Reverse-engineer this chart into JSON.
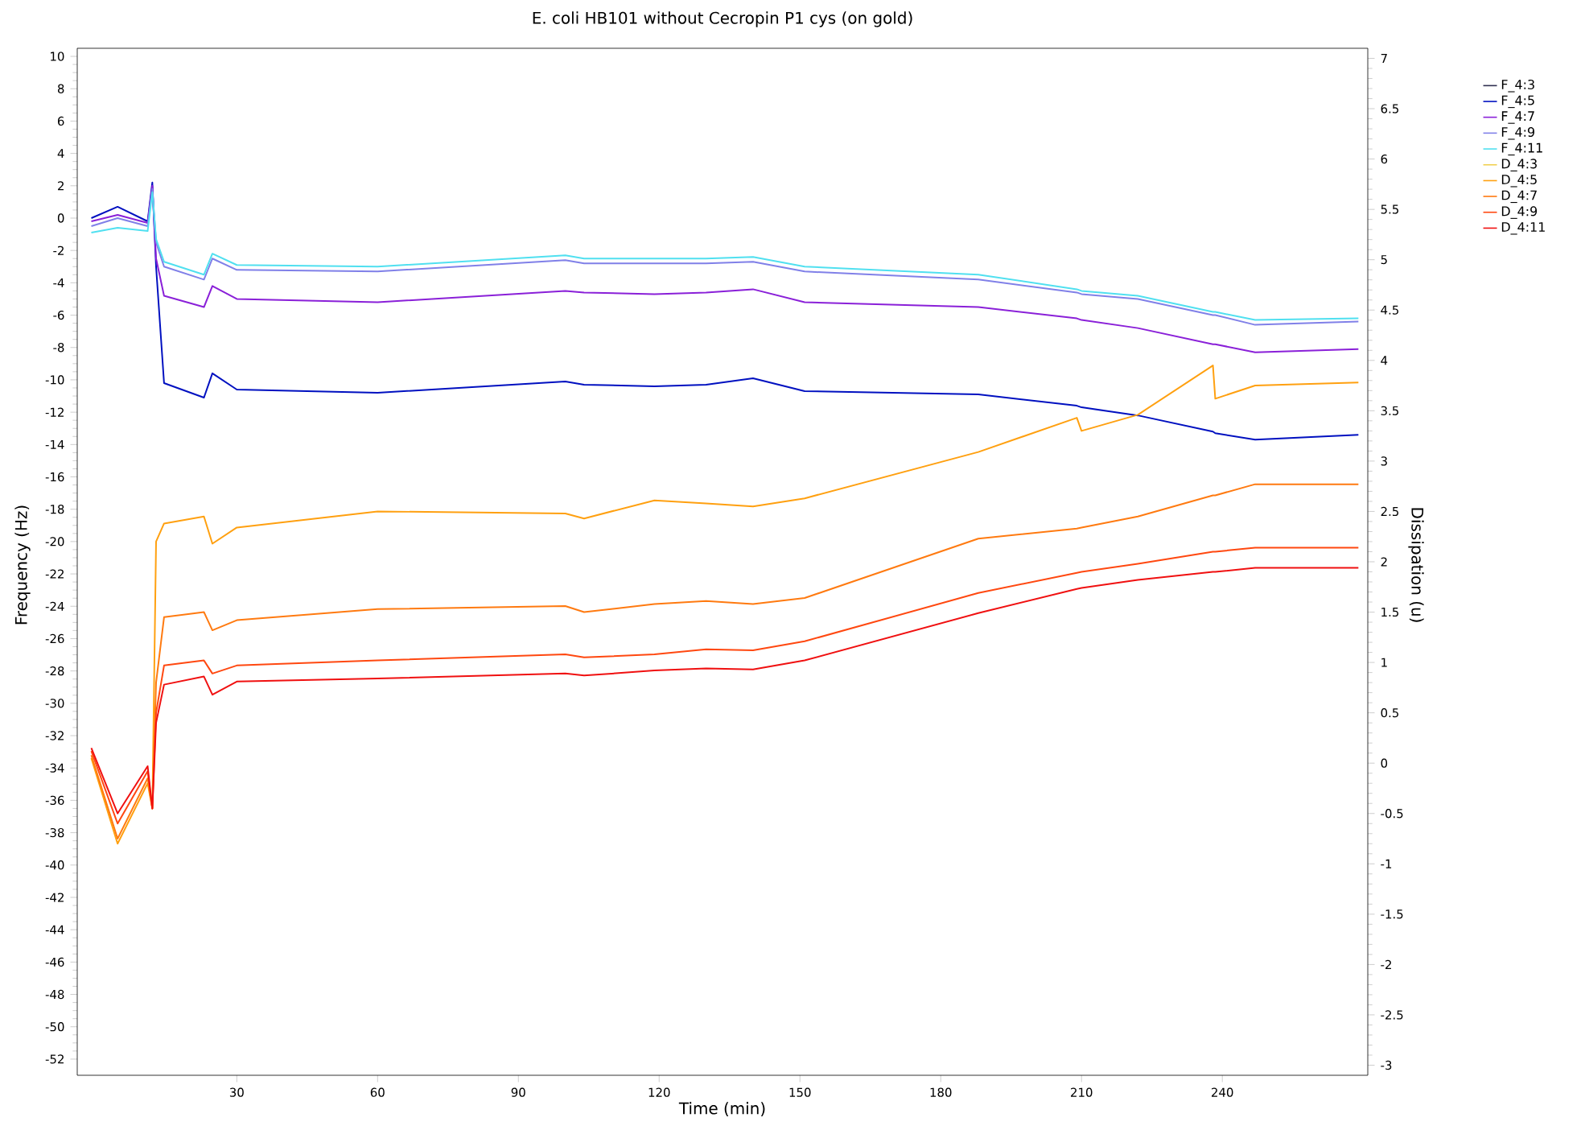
{
  "chart_data": {
    "type": "line",
    "title": "E. coli HB101 without Cecropin P1 cys (on gold)",
    "xlabel": "Time (min)",
    "ylabel": "Frequency (Hz)",
    "y2label": "Dissipation (u)",
    "x": [
      -1,
      4.6,
      11,
      12,
      12.8,
      14.5,
      23,
      24.8,
      30,
      60,
      100,
      104,
      119,
      130,
      140,
      151,
      188,
      209,
      210,
      222,
      238,
      238.5,
      247,
      269
    ],
    "xlim": [
      -4,
      271
    ],
    "xticks": [
      30,
      60,
      90,
      120,
      150,
      180,
      210,
      240
    ],
    "ylim": [
      -53,
      10.5
    ],
    "yticks": [
      -52,
      -50,
      -48,
      -46,
      -44,
      -42,
      -40,
      -38,
      -36,
      -34,
      -32,
      -30,
      -28,
      -26,
      -24,
      -22,
      -20,
      -18,
      -16,
      -14,
      -12,
      -10,
      -8,
      -6,
      -4,
      -2,
      0,
      2,
      4,
      6,
      8,
      10
    ],
    "y2lim": [
      -3.1,
      7.1
    ],
    "y2ticks": [
      -3,
      -2.5,
      -2,
      -1.5,
      -1,
      -0.5,
      0,
      0.5,
      1,
      1.5,
      2,
      2.5,
      3,
      3.5,
      4,
      4.5,
      5,
      5.5,
      6,
      6.5,
      7
    ],
    "legend": "right",
    "series": [
      {
        "name": "F_4:3",
        "color": "#303050",
        "values": [
          null,
          null,
          null,
          null,
          null,
          null,
          null,
          null,
          null,
          null,
          null,
          null,
          null,
          null,
          null,
          null,
          null,
          null,
          null,
          null,
          null,
          null,
          null,
          null
        ]
      },
      {
        "name": "F_4:5",
        "color": "#0010c0",
        "values": [
          0,
          0.7,
          -0.2,
          2.2,
          -3,
          -10.2,
          -11.1,
          -9.6,
          -10.6,
          -10.8,
          -10.1,
          -10.3,
          -10.4,
          -10.3,
          -9.9,
          -10.7,
          -10.9,
          -11.6,
          -11.7,
          -12.2,
          -13.2,
          -13.3,
          -13.7,
          -13.4
        ]
      },
      {
        "name": "F_4:7",
        "color": "#8a20d8",
        "values": [
          -0.2,
          0.2,
          -0.3,
          2.0,
          -2.5,
          -4.8,
          -5.5,
          -4.2,
          -5.0,
          -5.2,
          -4.5,
          -4.6,
          -4.7,
          -4.6,
          -4.4,
          -5.2,
          -5.5,
          -6.2,
          -6.3,
          -6.8,
          -7.8,
          -7.8,
          -8.3,
          -8.1
        ]
      },
      {
        "name": "F_4:9",
        "color": "#8080e8",
        "values": [
          -0.5,
          0,
          -0.5,
          1.8,
          -1.5,
          -3.0,
          -3.8,
          -2.5,
          -3.2,
          -3.3,
          -2.6,
          -2.8,
          -2.8,
          -2.8,
          -2.7,
          -3.3,
          -3.8,
          -4.6,
          -4.7,
          -5.0,
          -6.0,
          -6.0,
          -6.6,
          -6.4
        ]
      },
      {
        "name": "F_4:11",
        "color": "#50e0f0",
        "values": [
          -0.9,
          -0.6,
          -0.8,
          1.6,
          -1.3,
          -2.7,
          -3.5,
          -2.2,
          -2.9,
          -3.0,
          -2.3,
          -2.5,
          -2.5,
          -2.5,
          -2.4,
          -3.0,
          -3.5,
          -4.4,
          -4.5,
          -4.8,
          -5.8,
          -5.8,
          -6.3,
          -6.2
        ]
      },
      {
        "name": "D_4:3",
        "color": "#f0d050",
        "axis": "y2",
        "values": [
          null,
          null,
          null,
          null,
          null,
          null,
          null,
          null,
          null,
          null,
          null,
          null,
          null,
          null,
          null,
          null,
          null,
          null,
          null,
          null,
          null,
          null,
          null,
          null
        ]
      },
      {
        "name": "D_4:5",
        "color": "#ffa010",
        "axis": "y2",
        "values": [
          0.05,
          -0.8,
          -0.2,
          -0.45,
          2.2,
          2.38,
          2.45,
          2.18,
          2.34,
          2.5,
          2.48,
          2.43,
          2.61,
          2.58,
          2.55,
          2.63,
          3.09,
          3.43,
          3.3,
          3.46,
          3.95,
          3.62,
          3.75,
          3.78
        ]
      },
      {
        "name": "D_4:7",
        "color": "#ff7a10",
        "axis": "y2",
        "values": [
          0.08,
          -0.75,
          -0.15,
          -0.45,
          0.8,
          1.45,
          1.5,
          1.32,
          1.42,
          1.53,
          1.56,
          1.5,
          1.58,
          1.61,
          1.58,
          1.64,
          2.23,
          2.33,
          2.34,
          2.45,
          2.66,
          2.66,
          2.77,
          2.77
        ]
      },
      {
        "name": "D_4:9",
        "color": "#ff4810",
        "axis": "y2",
        "values": [
          0.12,
          -0.6,
          -0.08,
          -0.45,
          0.5,
          0.97,
          1.02,
          0.89,
          0.97,
          1.02,
          1.08,
          1.05,
          1.08,
          1.13,
          1.12,
          1.21,
          1.69,
          1.89,
          1.9,
          1.98,
          2.1,
          2.1,
          2.14,
          2.14
        ]
      },
      {
        "name": "D_4:11",
        "color": "#f01010",
        "axis": "y2",
        "values": [
          0.15,
          -0.5,
          -0.03,
          -0.45,
          0.4,
          0.78,
          0.86,
          0.68,
          0.81,
          0.84,
          0.89,
          0.87,
          0.92,
          0.94,
          0.93,
          1.02,
          1.49,
          1.73,
          1.74,
          1.82,
          1.9,
          1.9,
          1.94,
          1.94
        ]
      }
    ]
  }
}
